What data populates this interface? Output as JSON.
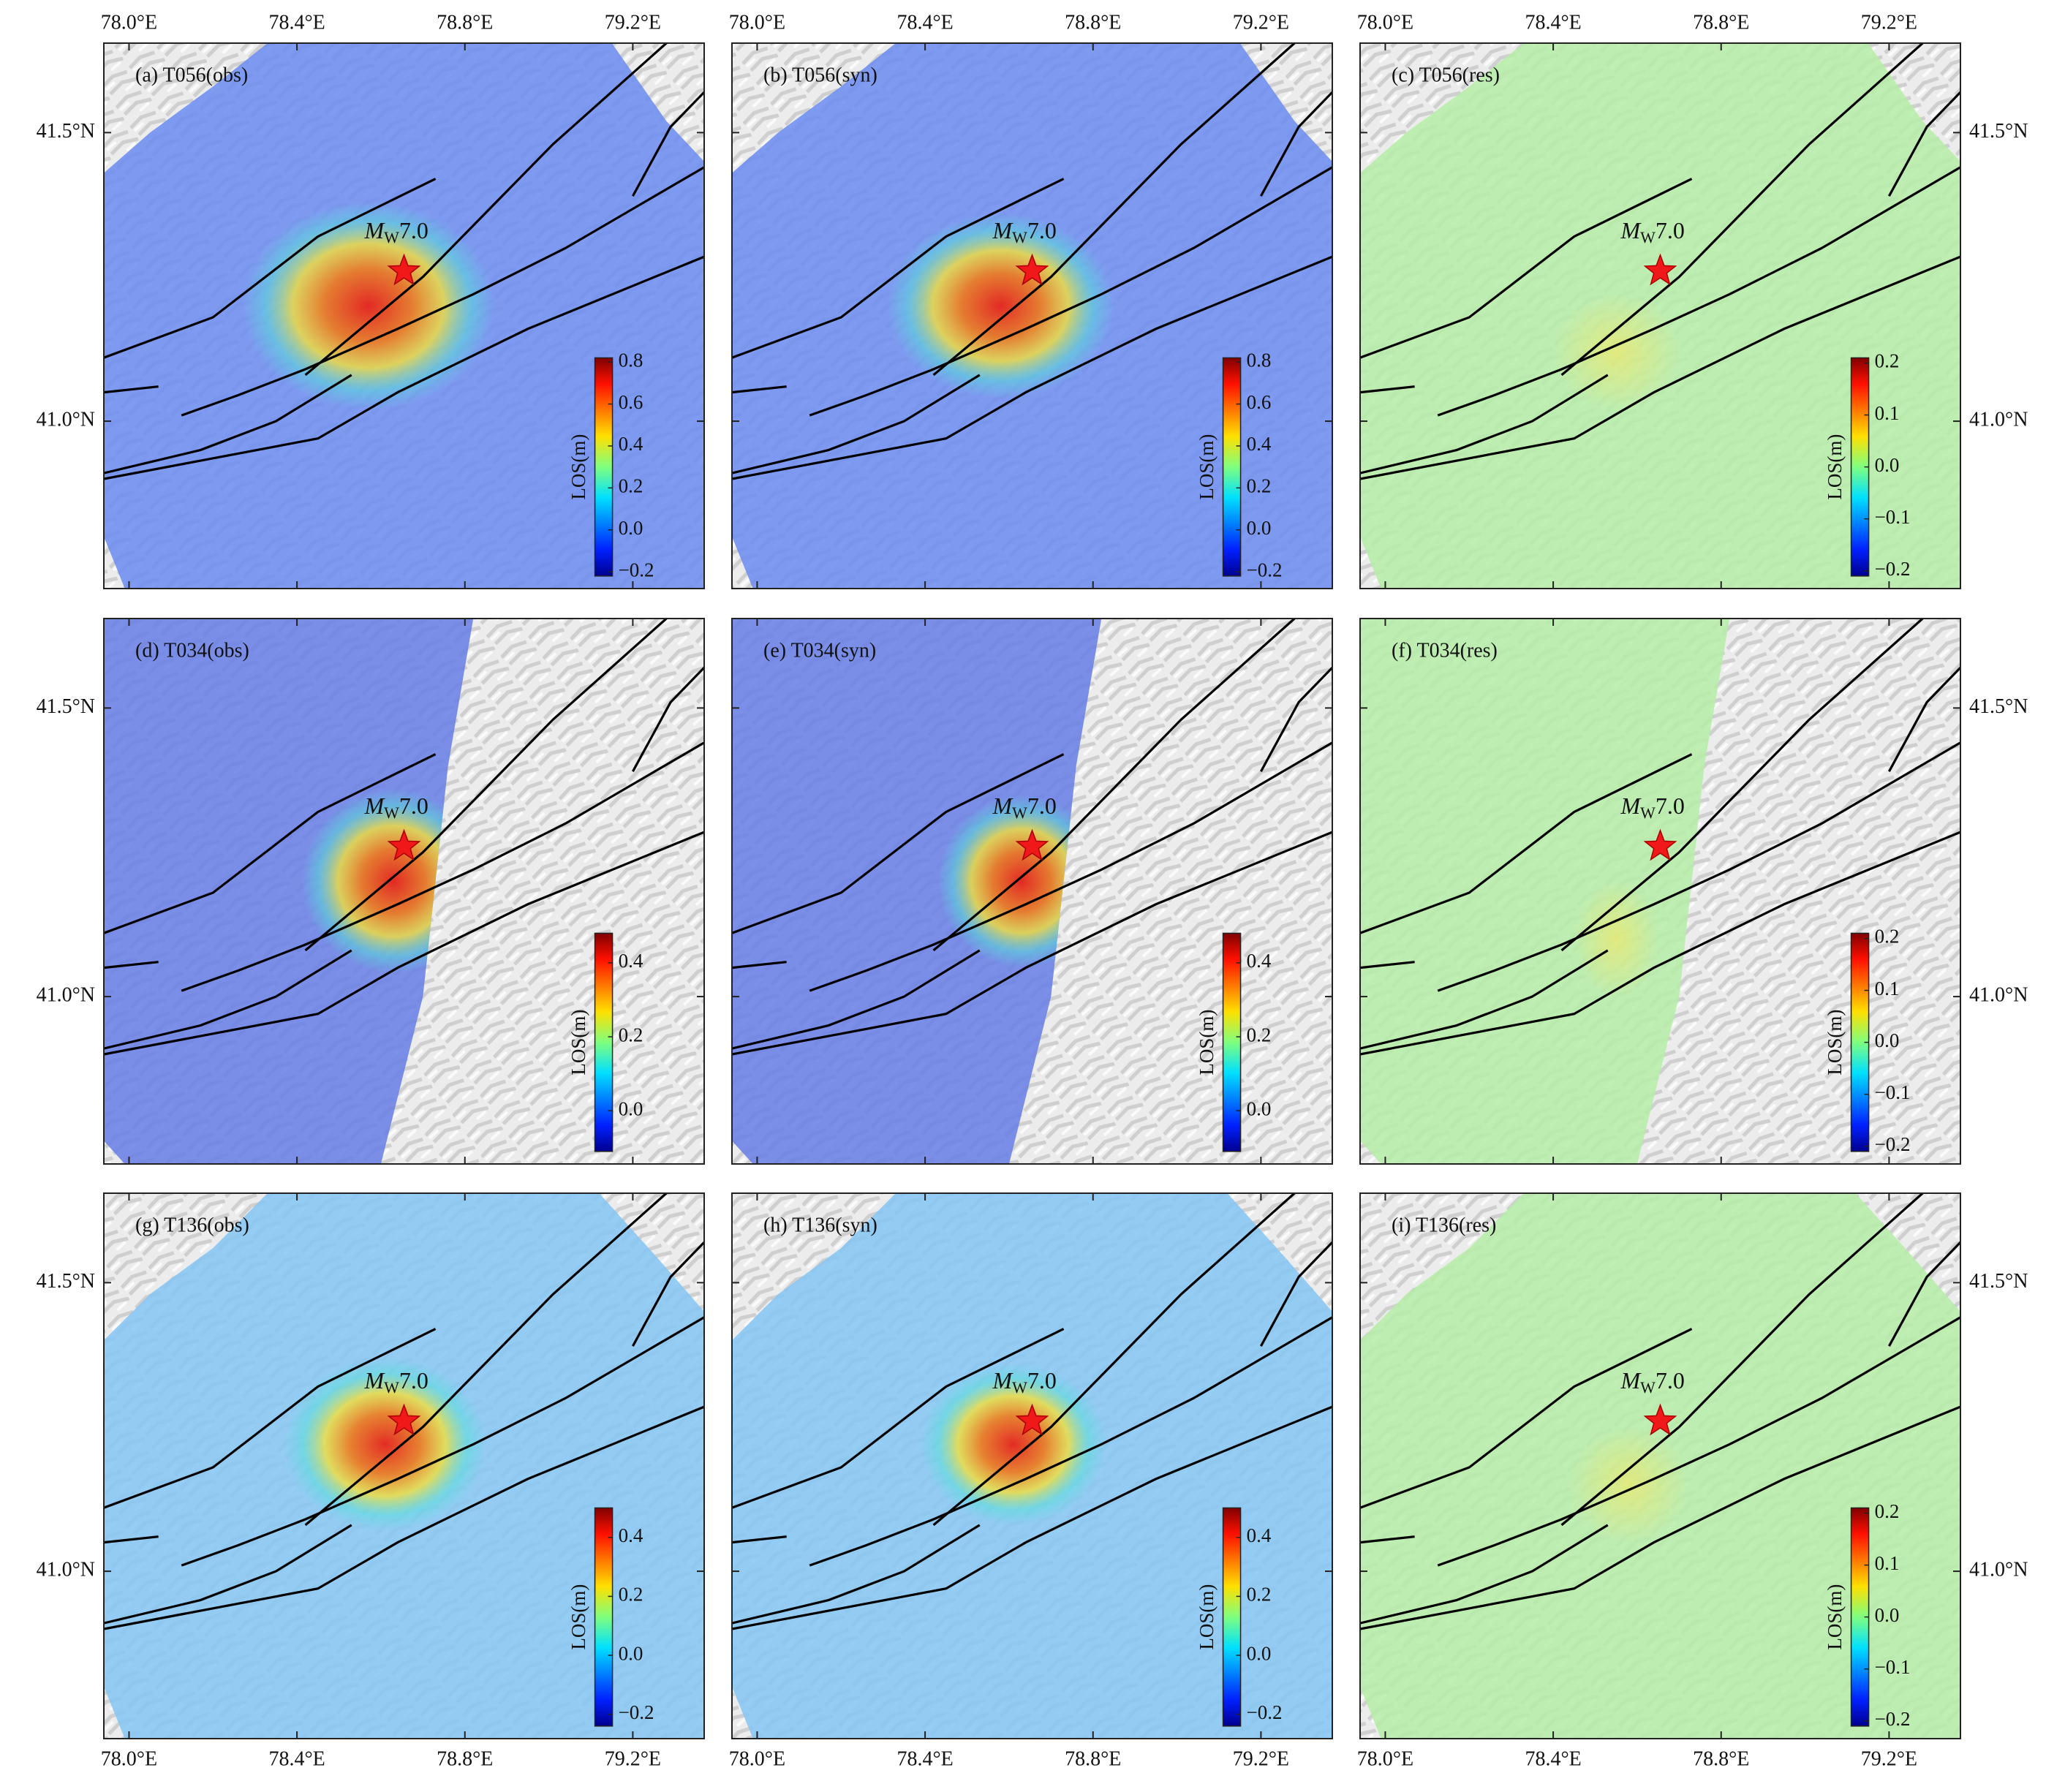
{
  "figure": {
    "xlim": [
      77.94,
      79.37
    ],
    "ylim": [
      40.71,
      41.655
    ],
    "x_ticks": [
      {
        "value": 78.0,
        "label": "78.0°E"
      },
      {
        "value": 78.4,
        "label": "78.4°E"
      },
      {
        "value": 78.8,
        "label": "78.8°E"
      },
      {
        "value": 79.2,
        "label": "79.2°E"
      }
    ],
    "y_ticks": [
      {
        "value": 41.0,
        "label": "41.0°N"
      },
      {
        "value": 41.5,
        "label": "41.5°N"
      }
    ],
    "epicenter_label": {
      "symbol": "M",
      "subscript": "W",
      "magnitude": "7.0"
    },
    "panels": [
      {
        "label": "(a) T056(obs)",
        "colorbar": {
          "label": "LOS(m)",
          "lim": [
            -0.22,
            0.82
          ],
          "ticks": [
            {
              "value": -0.2,
              "label": "−0.2"
            },
            {
              "value": 0,
              "label": "0.0"
            },
            0.2,
            0.4,
            0.6,
            0.8
          ]
        }
      },
      {
        "label": "(b) T056(syn)",
        "colorbar": {
          "label": "LOS(m)",
          "lim": [
            -0.22,
            0.82
          ],
          "ticks": [
            {
              "value": -0.2,
              "label": "−0.2"
            },
            {
              "value": 0,
              "label": "0.0"
            },
            0.2,
            0.4,
            0.6,
            0.8
          ]
        }
      },
      {
        "label": "(c) T056(res)",
        "colorbar": {
          "label": "LOS(m)",
          "lim": [
            -0.21,
            0.21
          ],
          "ticks": [
            {
              "value": -0.2,
              "label": "−0.2"
            },
            {
              "value": -0.1,
              "label": "−0.1"
            },
            {
              "value": 0,
              "label": "0.0"
            },
            0.1,
            0.2
          ]
        }
      },
      {
        "label": "(d) T034(obs)",
        "colorbar": {
          "label": "LOS(m)",
          "lim": [
            -0.11,
            0.48
          ],
          "ticks": [
            {
              "value": 0,
              "label": "0.0"
            },
            0.2,
            0.4
          ]
        }
      },
      {
        "label": "(e) T034(syn)",
        "colorbar": {
          "label": "LOS(m)",
          "lim": [
            -0.11,
            0.48
          ],
          "ticks": [
            {
              "value": 0,
              "label": "0.0"
            },
            0.2,
            0.4
          ]
        }
      },
      {
        "label": "(f) T034(res)",
        "colorbar": {
          "label": "LOS(m)",
          "lim": [
            -0.21,
            0.21
          ],
          "ticks": [
            {
              "value": -0.2,
              "label": "−0.2"
            },
            {
              "value": -0.1,
              "label": "−0.1"
            },
            {
              "value": 0,
              "label": "0.0"
            },
            0.1,
            0.2
          ]
        }
      },
      {
        "label": "(g) T136(obs)",
        "colorbar": {
          "label": "LOS(m)",
          "lim": [
            -0.24,
            0.5
          ],
          "ticks": [
            {
              "value": -0.2,
              "label": "−0.2"
            },
            {
              "value": 0,
              "label": "0.0"
            },
            0.2,
            0.4
          ]
        }
      },
      {
        "label": "(h) T136(syn)",
        "colorbar": {
          "label": "LOS(m)",
          "lim": [
            -0.24,
            0.5
          ],
          "ticks": [
            {
              "value": -0.2,
              "label": "−0.2"
            },
            {
              "value": 0,
              "label": "0.0"
            },
            0.2,
            0.4
          ]
        }
      },
      {
        "label": "(i) T136(res)",
        "colorbar": {
          "label": "LOS(m)",
          "lim": [
            -0.21,
            0.21
          ],
          "ticks": [
            {
              "value": -0.2,
              "label": "−0.2"
            },
            {
              "value": -0.1,
              "label": "−0.1"
            },
            {
              "value": 0,
              "label": "0.0"
            },
            0.1,
            0.2
          ]
        }
      }
    ]
  }
}
